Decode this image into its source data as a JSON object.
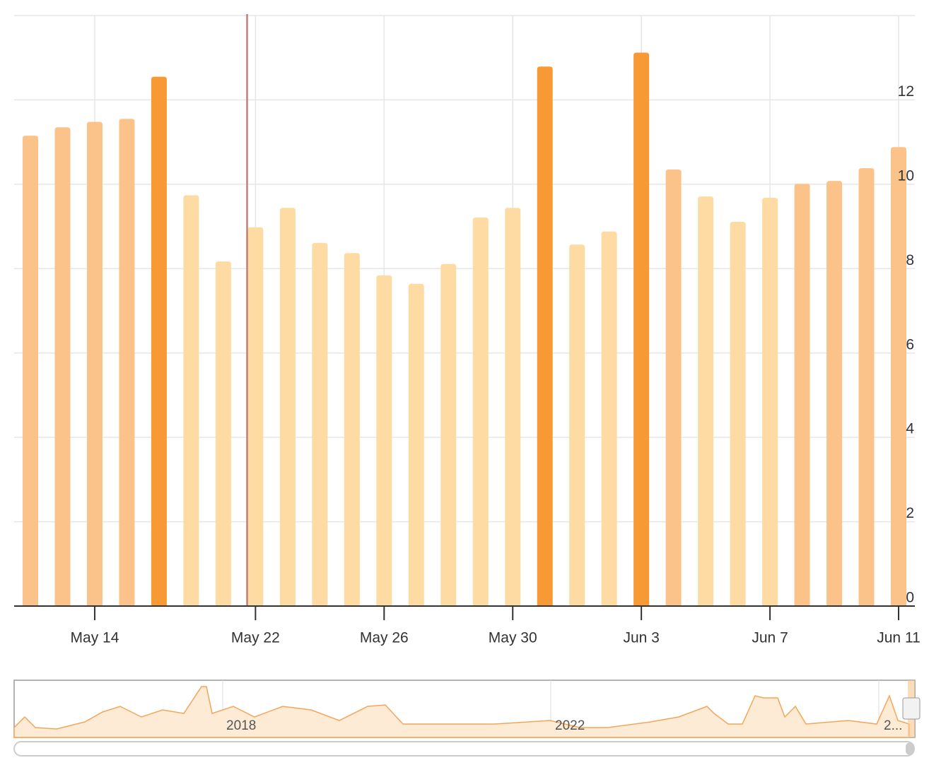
{
  "chart_data": {
    "type": "bar",
    "categories": [
      null,
      null,
      "May 14",
      null,
      null,
      null,
      null,
      "May 22",
      null,
      null,
      null,
      "May 26",
      null,
      null,
      null,
      "May 30",
      null,
      null,
      null,
      "Jun 3",
      null,
      null,
      null,
      "Jun 7",
      null,
      null,
      null,
      "Jun 11"
    ],
    "values": [
      11.15,
      11.35,
      11.48,
      11.55,
      12.55,
      9.74,
      8.17,
      8.98,
      9.44,
      8.61,
      8.37,
      7.84,
      7.64,
      8.11,
      9.21,
      9.44,
      12.79,
      8.57,
      8.88,
      13.12,
      10.35,
      9.71,
      9.11,
      9.68,
      10.01,
      10.08,
      10.38,
      10.88
    ],
    "colors": [
      "#fbc38a",
      "#fbc38a",
      "#fbc38a",
      "#fbc38a",
      "#f79a36",
      "#fedba3",
      "#fedba3",
      "#fedba3",
      "#fedba3",
      "#fedba3",
      "#fedba3",
      "#fedba3",
      "#fedba3",
      "#fedba3",
      "#fedba3",
      "#fedba3",
      "#f79a36",
      "#fedba3",
      "#fedba3",
      "#f79a36",
      "#fbc38a",
      "#fedba3",
      "#fedba3",
      "#fedba3",
      "#fbc38a",
      "#fbc38a",
      "#fbc38a",
      "#fbc38a"
    ],
    "ylim": [
      0,
      14
    ],
    "yticks": [
      0,
      2,
      4,
      6,
      8,
      10,
      12
    ],
    "grid": true,
    "navigator_labels": [
      "2018",
      "2022",
      "2..."
    ]
  }
}
